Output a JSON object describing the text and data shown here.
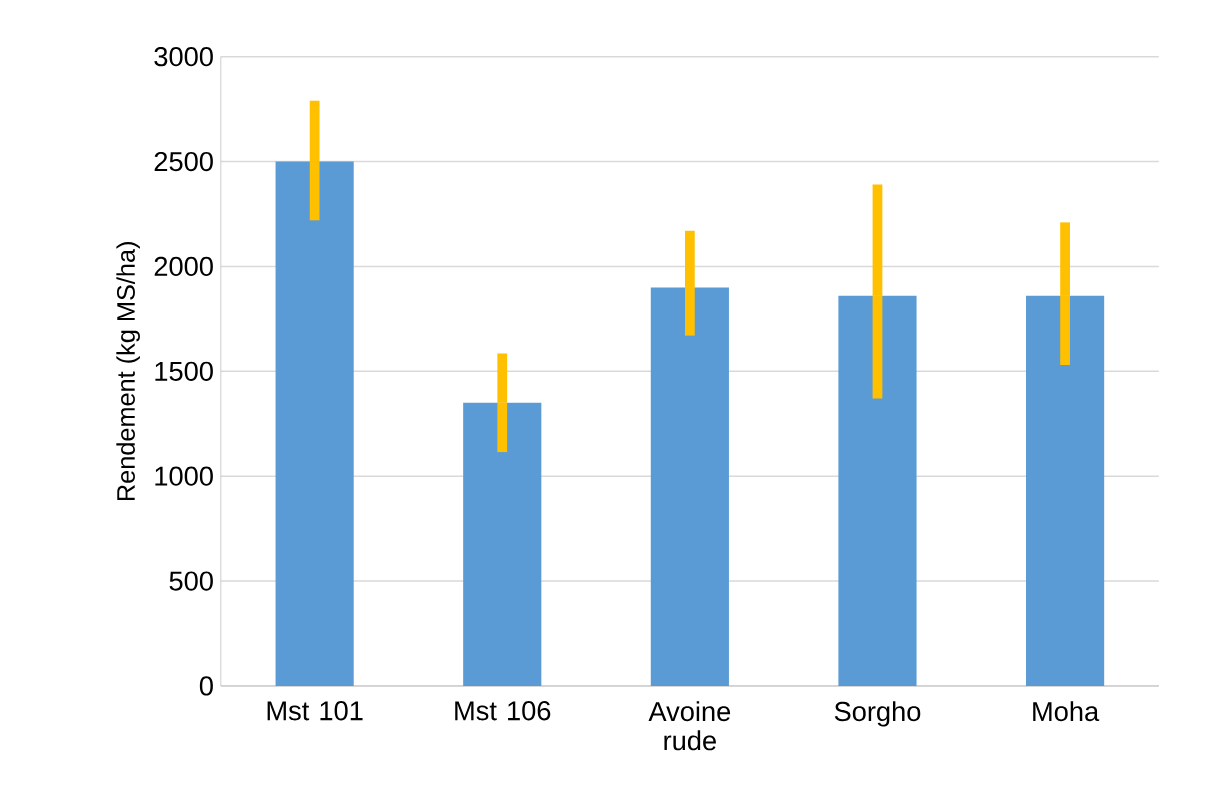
{
  "chart_data": {
    "type": "bar",
    "ylabel": "Rendement (kg MS/ha)",
    "categories": [
      "Mst 101",
      "Mst 106",
      "Avoine rude",
      "Sorgho",
      "Moha"
    ],
    "values": [
      2500,
      1350,
      1900,
      1860,
      1860
    ],
    "errors": [
      [
        2220,
        2790
      ],
      [
        1115,
        1585
      ],
      [
        1670,
        2170
      ],
      [
        1370,
        2390
      ],
      [
        1530,
        2210
      ]
    ],
    "color": "#5b9bd5",
    "ylim": [
      0,
      3000
    ],
    "yticks": [
      0,
      500,
      1000,
      1500,
      2000,
      2500,
      3000
    ],
    "grid": "y"
  }
}
